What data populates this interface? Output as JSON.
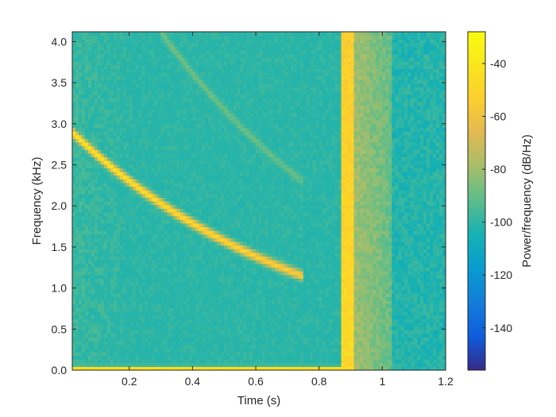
{
  "chart_data": {
    "type": "heatmap",
    "title": "",
    "xlabel": "Time (s)",
    "ylabel": "Frequency (kHz)",
    "xlim": [
      0.02,
      1.2
    ],
    "ylim": [
      0.0,
      4.12
    ],
    "x_ticks": [
      0.2,
      0.4,
      0.6,
      0.8,
      1.0,
      1.2
    ],
    "x_tick_labels": [
      "0.2",
      "0.4",
      "0.6",
      "0.8",
      "1",
      "1.2"
    ],
    "y_ticks": [
      0.0,
      0.5,
      1.0,
      1.5,
      2.0,
      2.5,
      3.0,
      3.5,
      4.0
    ],
    "y_tick_labels": [
      "0.0",
      "0.5",
      "1.0",
      "1.5",
      "2.0",
      "2.5",
      "3.0",
      "3.5",
      "4.0"
    ],
    "colorbar": {
      "label": "Power/frequency (dB/Hz)",
      "range": [
        -156,
        -28
      ],
      "ticks": [
        -40,
        -60,
        -80,
        -100,
        -120,
        -140
      ],
      "tick_labels": [
        "-40",
        "-60",
        "-80",
        "-100",
        "-120",
        "-140"
      ],
      "colormap": "parula"
    },
    "background_level_db": -102,
    "features": [
      {
        "kind": "chirp",
        "t_start": 0.02,
        "t_end": 0.75,
        "f_start_khz": 2.9,
        "f_end_khz": 1.15,
        "peak_db": -38
      },
      {
        "kind": "chirp",
        "t_start": 0.3,
        "t_end": 0.75,
        "f_start_khz": 4.12,
        "f_end_khz": 2.3,
        "peak_db": -86
      },
      {
        "kind": "broadband-burst",
        "t_start": 0.87,
        "t_end": 0.91,
        "f_range_khz": [
          0.0,
          4.12
        ],
        "peak_db": -48
      },
      {
        "kind": "broadband-tail",
        "t_start": 0.91,
        "t_end": 1.03,
        "f_range_khz": [
          0.0,
          4.12
        ],
        "peak_db": -80
      },
      {
        "kind": "low-frequency-band",
        "t_start": 0.02,
        "t_end": 0.87,
        "f_khz": 0.02,
        "peak_db": -45
      }
    ]
  }
}
